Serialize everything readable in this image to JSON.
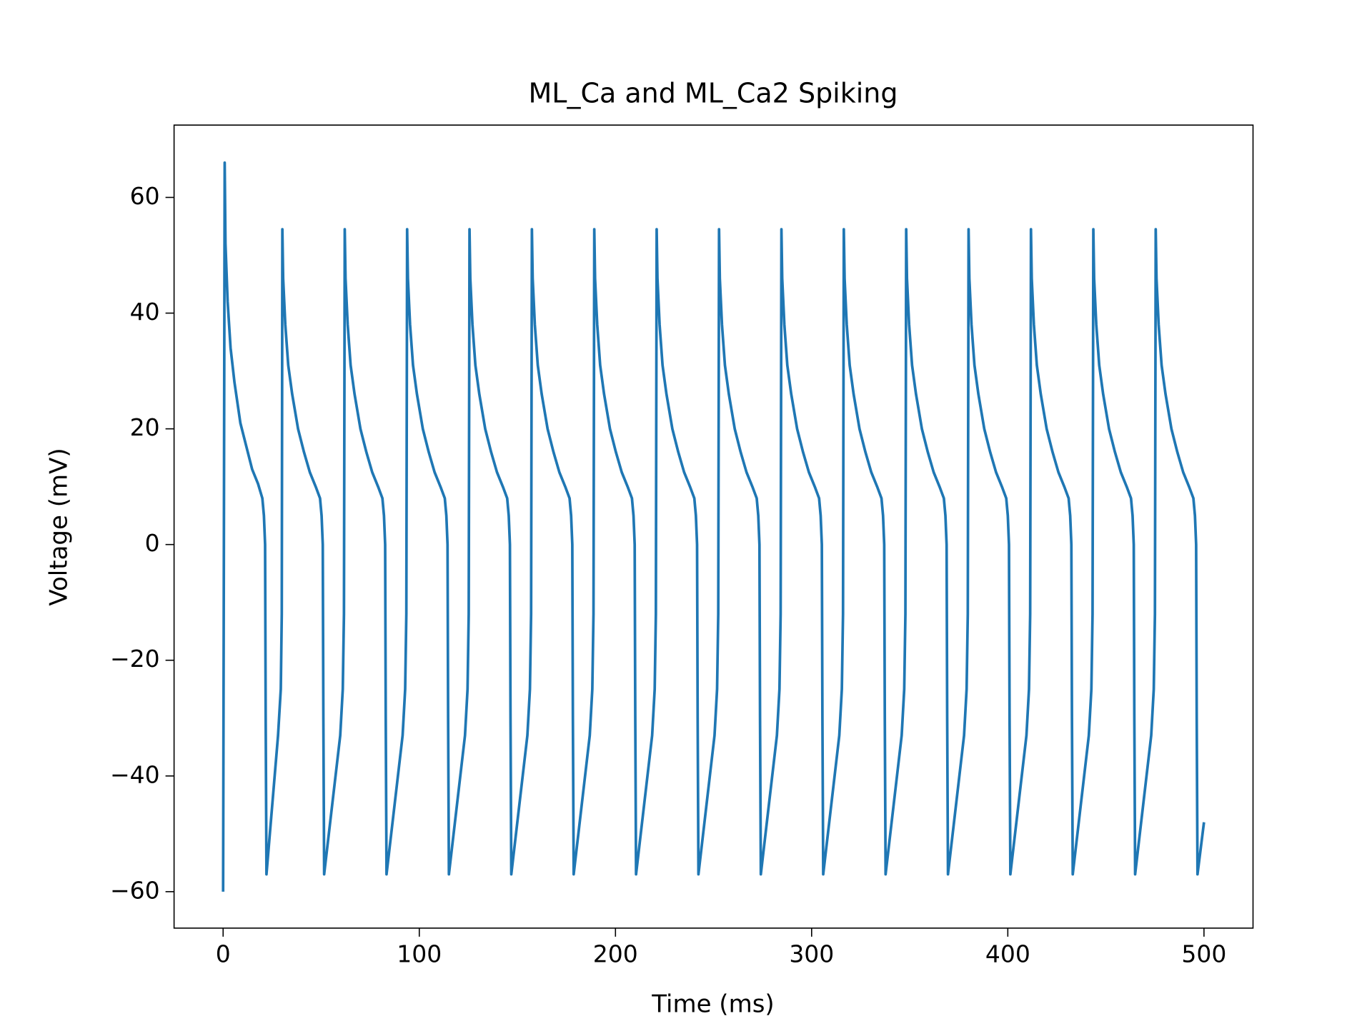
{
  "chart_data": {
    "type": "line",
    "title": "ML_Ca and ML_Ca2 Spiking",
    "x_label": "Time (ms)",
    "y_label": "Voltage (mV)",
    "color": "#1f77b4",
    "xlim": [
      -25,
      525
    ],
    "ylim": [
      -66.3,
      72.5
    ],
    "xticks": [
      0,
      100,
      200,
      300,
      400,
      500
    ],
    "yticks": [
      {
        "value": -60,
        "label": "−60"
      },
      {
        "value": -40,
        "label": "−40"
      },
      {
        "value": -20,
        "label": "−20"
      },
      0,
      20,
      40,
      60
    ],
    "x": [
      0,
      0.3,
      0.8,
      1.2,
      2.3,
      3.8,
      5.8,
      8.8,
      11.8,
      14.8,
      17.8,
      20,
      20.8,
      21.4,
      21.7,
      22.1,
      28,
      29.4,
      29.9,
      30.2,
      30.6,
      31.7,
      33.2,
      35.2,
      38.2,
      41.2,
      44.2,
      47.2,
      49.4,
      50.2,
      50.8,
      51.1,
      51.5,
      59.7,
      61,
      61.6,
      62,
      62.4,
      63.5,
      65,
      67,
      70,
      73,
      76,
      79,
      81.2,
      82,
      82.6,
      82.9,
      83.3,
      91.5,
      92.8,
      93.4,
      93.8,
      94.2,
      95.3,
      96.8,
      98.8,
      101.8,
      104.8,
      107.8,
      110.8,
      113,
      113.8,
      114.4,
      114.7,
      115.1,
      123.3,
      124.6,
      125.2,
      125.6,
      126,
      127.1,
      128.6,
      130.6,
      133.6,
      136.6,
      139.6,
      142.6,
      144.8,
      145.6,
      146.2,
      146.5,
      146.9,
      155.1,
      156.4,
      157,
      157.4,
      157.8,
      158.9,
      160.4,
      162.4,
      165.4,
      168.4,
      171.4,
      174.4,
      176.6,
      177.4,
      178,
      178.3,
      178.7,
      186.9,
      188.2,
      188.8,
      189.2,
      189.6,
      190.7,
      192.2,
      194.2,
      197.2,
      200.2,
      203.2,
      206.2,
      208.4,
      209.2,
      209.8,
      210.1,
      210.5,
      218.7,
      220,
      220.6,
      221,
      221.4,
      222.5,
      224,
      226,
      229,
      232,
      235,
      238,
      240.2,
      241,
      241.6,
      241.9,
      242.3,
      250.5,
      251.8,
      252.4,
      252.8,
      253.2,
      254.3,
      255.8,
      257.8,
      260.8,
      263.8,
      266.8,
      269.8,
      272,
      272.8,
      273.4,
      273.7,
      274.1,
      282.3,
      283.6,
      284.2,
      284.6,
      285,
      286.1,
      287.6,
      289.6,
      292.6,
      295.6,
      298.6,
      301.6,
      303.8,
      304.6,
      305.2,
      305.5,
      305.9,
      314.1,
      315.4,
      316,
      316.4,
      316.8,
      317.9,
      319.4,
      321.4,
      324.4,
      327.4,
      330.4,
      333.4,
      335.6,
      336.4,
      337,
      337.3,
      337.7,
      345.9,
      347.2,
      347.8,
      348.2,
      348.6,
      349.7,
      351.2,
      353.2,
      356.2,
      359.2,
      362.2,
      365.2,
      367.4,
      368.2,
      368.8,
      369.1,
      369.5,
      377.7,
      379,
      379.6,
      380,
      380.4,
      381.5,
      383,
      385,
      388,
      391,
      394,
      397,
      399.2,
      400,
      400.6,
      400.9,
      401.3,
      409.5,
      410.8,
      411.4,
      411.8,
      412.2,
      413.3,
      414.8,
      416.8,
      419.8,
      422.8,
      425.8,
      428.8,
      431,
      431.8,
      432.4,
      432.7,
      433.1,
      441.3,
      442.6,
      443.2,
      443.6,
      444,
      445.1,
      446.6,
      448.6,
      451.6,
      454.6,
      457.6,
      460.6,
      462.8,
      463.6,
      464.2,
      464.5,
      464.9,
      473.1,
      474.4,
      475,
      475.4,
      475.8,
      476.9,
      478.4,
      480.4,
      483.4,
      486.4,
      489.4,
      492.4,
      494.6,
      495.4,
      496,
      496.3,
      496.7,
      500
    ],
    "values": [
      -60,
      -14,
      66,
      52,
      42,
      34,
      28,
      21,
      17,
      13,
      10.5,
      8,
      5,
      0,
      -30,
      -57,
      -33,
      -25,
      -12,
      54.5,
      46,
      38,
      31,
      26,
      20,
      16,
      12.5,
      10,
      8,
      5,
      0,
      -30,
      -57,
      -33,
      -25,
      -12,
      54.5,
      46,
      38,
      31,
      26,
      20,
      16,
      12.5,
      10,
      8,
      5,
      0,
      -30,
      -57,
      -33,
      -25,
      -12,
      54.5,
      46,
      38,
      31,
      26,
      20,
      16,
      12.5,
      10,
      8,
      5,
      0,
      -30,
      -57,
      -33,
      -25,
      -12,
      54.5,
      46,
      38,
      31,
      26,
      20,
      16,
      12.5,
      10,
      8,
      5,
      0,
      -30,
      -57,
      -33,
      -25,
      -12,
      54.5,
      46,
      38,
      31,
      26,
      20,
      16,
      12.5,
      10,
      8,
      5,
      0,
      -30,
      -57,
      -33,
      -25,
      -12,
      54.5,
      46,
      38,
      31,
      26,
      20,
      16,
      12.5,
      10,
      8,
      5,
      0,
      -30,
      -57,
      -33,
      -25,
      -12,
      54.5,
      46,
      38,
      31,
      26,
      20,
      16,
      12.5,
      10,
      8,
      5,
      0,
      -30,
      -57,
      -33,
      -25,
      -12,
      54.5,
      46,
      38,
      31,
      26,
      20,
      16,
      12.5,
      10,
      8,
      5,
      0,
      -30,
      -57,
      -33,
      -25,
      -12,
      54.5,
      46,
      38,
      31,
      26,
      20,
      16,
      12.5,
      10,
      8,
      5,
      0,
      -30,
      -57,
      -33,
      -25,
      -12,
      54.5,
      46,
      38,
      31,
      26,
      20,
      16,
      12.5,
      10,
      8,
      5,
      0,
      -30,
      -57,
      -33,
      -25,
      -12,
      54.5,
      46,
      38,
      31,
      26,
      20,
      16,
      12.5,
      10,
      8,
      5,
      0,
      -30,
      -57,
      -33,
      -25,
      -12,
      54.5,
      46,
      38,
      31,
      26,
      20,
      16,
      12.5,
      10,
      8,
      5,
      0,
      -30,
      -57,
      -33,
      -25,
      -12,
      54.5,
      46,
      38,
      31,
      26,
      20,
      16,
      12.5,
      10,
      8,
      5,
      0,
      -30,
      -57,
      -33,
      -25,
      -12,
      54.5,
      46,
      38,
      31,
      26,
      20,
      16,
      12.5,
      10,
      8,
      5,
      0,
      -30,
      -57,
      -33,
      -25,
      -12,
      54.5,
      46,
      38,
      31,
      26,
      20,
      16,
      12.5,
      10,
      8,
      5,
      0,
      -30,
      -57,
      -48
    ]
  }
}
